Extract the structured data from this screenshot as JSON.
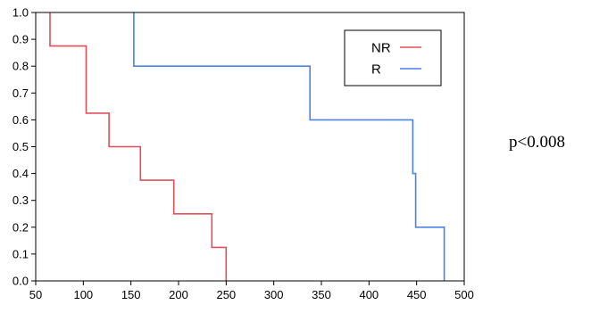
{
  "chart_data": {
    "type": "line",
    "step": true,
    "xlim": [
      50,
      500
    ],
    "ylim": [
      0,
      1
    ],
    "x_ticks": [
      50,
      100,
      150,
      200,
      250,
      300,
      350,
      400,
      450,
      500
    ],
    "x_tick_labels": [
      "50",
      "100",
      "150",
      "200",
      "250",
      "300",
      "350",
      "400",
      "450",
      "500"
    ],
    "y_ticks": [
      0,
      0.1,
      0.2,
      0.3,
      0.4,
      0.5,
      0.6,
      0.7,
      0.8,
      0.9,
      1.0
    ],
    "y_tick_labels": [
      "0.0",
      "0.1",
      "0.2",
      "0.3",
      "0.4",
      "0.5",
      "0.6",
      "0.7",
      "0.8",
      "0.9",
      "1.0"
    ],
    "grid": false,
    "legend_position": "top-right",
    "series": [
      {
        "name": "NR",
        "color": "#e0505a",
        "points": [
          [
            65,
            1.0
          ],
          [
            65,
            0.875
          ],
          [
            103,
            0.875
          ],
          [
            103,
            0.625
          ],
          [
            127,
            0.625
          ],
          [
            127,
            0.5
          ],
          [
            160,
            0.5
          ],
          [
            160,
            0.375
          ],
          [
            195,
            0.375
          ],
          [
            195,
            0.25
          ],
          [
            235,
            0.25
          ],
          [
            235,
            0.125
          ],
          [
            250,
            0.125
          ],
          [
            250,
            0.0
          ]
        ]
      },
      {
        "name": "R",
        "color": "#4a82e8",
        "points": [
          [
            153,
            1.0
          ],
          [
            153,
            0.8
          ],
          [
            338,
            0.8
          ],
          [
            338,
            0.6
          ],
          [
            446,
            0.6
          ],
          [
            446,
            0.4
          ],
          [
            449,
            0.4
          ],
          [
            449,
            0.2
          ],
          [
            479,
            0.2
          ],
          [
            479,
            0.0
          ]
        ]
      }
    ],
    "annotations": [
      "p<0.008"
    ]
  }
}
